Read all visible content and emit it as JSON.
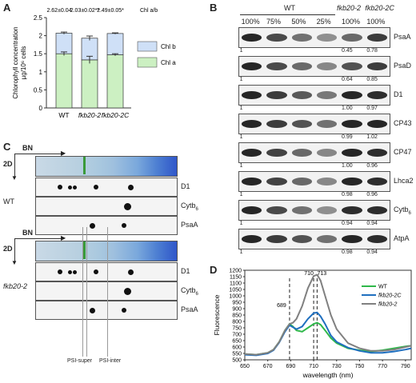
{
  "panels": {
    "A": {
      "letter": "A",
      "chart_data": {
        "type": "bar",
        "categories": [
          "WT",
          "fkb20-2",
          "fkb20-2C"
        ],
        "series": [
          {
            "name": "Chl a",
            "values": [
              1.5,
              1.33,
              1.47
            ],
            "color": "#ccf0c2"
          },
          {
            "name": "Chl b",
            "values": [
              0.57,
              0.6,
              0.59
            ],
            "color": "#cfe0f7"
          }
        ],
        "errors": [
          0.05,
          0.1,
          0.03
        ],
        "ratio_labels": [
          "2.62±0.04",
          "2.03±0.02**",
          "2.49±0.05*"
        ],
        "ratio_title": "Chl a/b",
        "ylabel_line1": "Chlorophyll concentration",
        "ylabel_line2": "µg/10⁶ cells",
        "yticks": [
          "0",
          "0.5",
          "1",
          "1.5",
          "2",
          "2.5"
        ],
        "ylim": [
          0,
          2.5
        ]
      }
    },
    "B": {
      "letter": "B",
      "group_wt": "WT",
      "lane_headers": [
        "100%",
        "75%",
        "50%",
        "25%",
        "100%",
        "100%"
      ],
      "mutant_headers": [
        "fkb20-2",
        "fkb20-2C"
      ],
      "blots": [
        {
          "name": "PsaA",
          "quant": [
            "1",
            "0.45",
            "0.78"
          ]
        },
        {
          "name": "PsaD",
          "quant": [
            "1",
            "0.64",
            "0.85"
          ]
        },
        {
          "name": "D1",
          "quant": [
            "1",
            "1.00",
            "0.97"
          ]
        },
        {
          "name": "CP43",
          "quant": [
            "1",
            "0.99",
            "1.02"
          ]
        },
        {
          "name": "CP47",
          "quant": [
            "1",
            "1.00",
            "0.96"
          ]
        },
        {
          "name": "Lhca2",
          "quant": [
            "1",
            "0.98",
            "0.96"
          ]
        },
        {
          "name": "Cytb6",
          "quant": [
            "1",
            "0.94",
            "0.94"
          ]
        },
        {
          "name": "AtpA",
          "quant": [
            "1",
            "0.98",
            "0.94"
          ]
        }
      ]
    },
    "C": {
      "letter": "C",
      "bn_label": "BN",
      "twod_label": "2D",
      "groups": [
        {
          "name": "WT",
          "rows": [
            "D1",
            "Cytb6",
            "PsaA"
          ]
        },
        {
          "name": "fkb20-2",
          "rows": [
            "D1",
            "Cytb6",
            "PsaA"
          ]
        }
      ],
      "bottom_labels": [
        "PSI-super",
        "PSI-inter"
      ]
    },
    "D": {
      "letter": "D",
      "chart_data": {
        "type": "line",
        "xlabel": "wavelength (nm)",
        "ylabel": "Fluorescence",
        "xlim": [
          650,
          795
        ],
        "ylim": [
          500,
          1200
        ],
        "xticks": [
          650,
          670,
          690,
          710,
          730,
          750,
          770,
          790
        ],
        "yticks": [
          500,
          550,
          600,
          650,
          700,
          750,
          800,
          850,
          900,
          950,
          1000,
          1050,
          1100,
          1150,
          1200
        ],
        "markers": [
          689,
          710,
          713
        ],
        "series": [
          {
            "name": "WT",
            "color": "#2fb84a",
            "x": [
              650,
              660,
              670,
              675,
              680,
              685,
              689,
              692,
              695,
              700,
              705,
              710,
              713,
              716,
              720,
              725,
              730,
              740,
              750,
              760,
              770,
              780,
              790,
              795
            ],
            "y": [
              545,
              540,
              555,
              580,
              640,
              730,
              780,
              760,
              730,
              720,
              750,
              780,
              790,
              775,
              730,
              670,
              630,
              590,
              575,
              565,
              575,
              590,
              605,
              610
            ]
          },
          {
            "name": "fkb20-2C",
            "color": "#1f6fbf",
            "x": [
              650,
              660,
              670,
              675,
              680,
              685,
              689,
              692,
              695,
              700,
              705,
              710,
              713,
              716,
              720,
              725,
              730,
              740,
              750,
              760,
              770,
              780,
              790,
              795
            ],
            "y": [
              540,
              535,
              550,
              575,
              635,
              720,
              770,
              755,
              740,
              760,
              820,
              865,
              870,
              840,
              780,
              690,
              640,
              595,
              570,
              555,
              555,
              565,
              580,
              590
            ]
          },
          {
            "name": "fkb20-2",
            "color": "#808080",
            "x": [
              650,
              660,
              670,
              675,
              680,
              685,
              689,
              692,
              695,
              700,
              705,
              710,
              713,
              716,
              720,
              725,
              730,
              740,
              750,
              760,
              770,
              780,
              790,
              795
            ],
            "y": [
              545,
              540,
              555,
              580,
              640,
              730,
              780,
              790,
              820,
              920,
              1060,
              1155,
              1165,
              1120,
              1000,
              850,
              740,
              630,
              590,
              570,
              570,
              580,
              600,
              610
            ]
          }
        ]
      }
    }
  }
}
